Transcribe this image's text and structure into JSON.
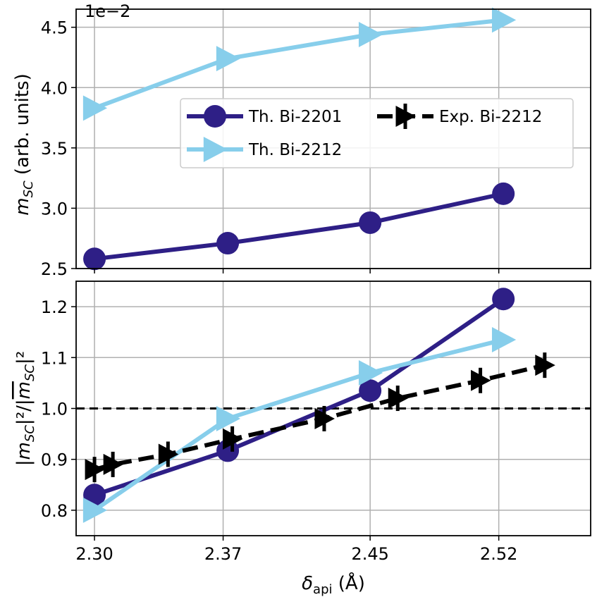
{
  "chart_data": [
    {
      "panel": "top",
      "type": "line",
      "ylabel_main": "m",
      "ylabel_sub": "SC",
      "ylabel_rest": " (arb. units)",
      "offset_label": "1e−2",
      "ylim": [
        2.5,
        4.65
      ],
      "yticks": [
        2.5,
        3.0,
        3.5,
        4.0,
        4.5
      ],
      "ytick_labels": [
        "2.5",
        "3.0",
        "3.5",
        "4.0",
        "4.5"
      ],
      "grid": true,
      "legend": "center",
      "series": [
        {
          "name": "Th. Bi-2201",
          "color": "#2e1f86",
          "marker": "circle",
          "dashed": false,
          "x": [
            2.3,
            2.3725,
            2.45,
            2.5225
          ],
          "y": [
            2.58,
            2.71,
            2.88,
            3.12
          ]
        },
        {
          "name": "Th. Bi-2212",
          "color": "#87ceeb",
          "marker": "triangle-right",
          "dashed": false,
          "x": [
            2.3,
            2.3725,
            2.45,
            2.5225
          ],
          "y": [
            3.83,
            4.24,
            4.44,
            4.56
          ]
        }
      ],
      "legend_entries": [
        {
          "name": "Th. Bi-2201",
          "color": "#2e1f86",
          "marker": "circle",
          "dashed": false
        },
        {
          "name": "Exp. Bi-2212",
          "color": "#000000",
          "marker": "triangle-right-bar",
          "dashed": true
        },
        {
          "name": "Th. Bi-2212",
          "color": "#87ceeb",
          "marker": "triangle-right",
          "dashed": false
        }
      ]
    },
    {
      "panel": "bottom",
      "type": "line",
      "ylabel": "|m_SC|²/|m_SC|²",
      "ylim": [
        0.75,
        1.25
      ],
      "yticks": [
        0.8,
        0.9,
        1.0,
        1.1,
        1.2
      ],
      "ytick_labels": [
        "0.8",
        "0.9",
        "1.0",
        "1.1",
        "1.2"
      ],
      "xlabel": "δapi (Å)",
      "xlim": [
        2.29,
        2.57
      ],
      "xticks": [
        2.3,
        2.37,
        2.45,
        2.52
      ],
      "xtick_labels": [
        "2.30",
        "2.37",
        "2.45",
        "2.52"
      ],
      "grid": true,
      "reference_line": 1.0,
      "series": [
        {
          "name": "Th. Bi-2201",
          "color": "#2e1f86",
          "marker": "circle",
          "dashed": false,
          "x": [
            2.3,
            2.3725,
            2.45,
            2.5225
          ],
          "y": [
            0.83,
            0.917,
            1.035,
            1.215
          ]
        },
        {
          "name": "Th. Bi-2212",
          "color": "#87ceeb",
          "marker": "triangle-right",
          "dashed": false,
          "x": [
            2.3,
            2.3725,
            2.45,
            2.5225
          ],
          "y": [
            0.8,
            0.98,
            1.07,
            1.135
          ]
        },
        {
          "name": "Exp. Bi-2212",
          "color": "#000000",
          "marker": "triangle-right-bar",
          "dashed": true,
          "x": [
            2.3,
            2.31,
            2.34,
            2.375,
            2.425,
            2.465,
            2.51,
            2.545
          ],
          "y": [
            0.88,
            0.89,
            0.91,
            0.94,
            0.98,
            1.02,
            1.055,
            1.085
          ]
        }
      ]
    }
  ]
}
